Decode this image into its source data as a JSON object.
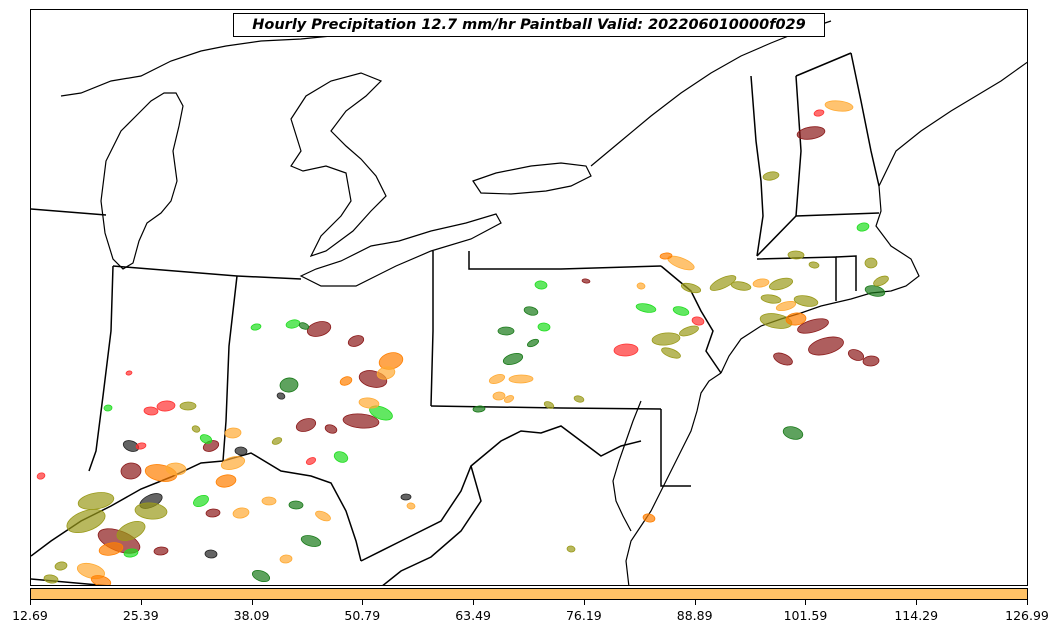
{
  "title": "Hourly Precipitation 12.7 mm/hr Paintball Valid: 202206010000f029",
  "colorbar": {
    "color": "#ffc266",
    "tick_labels": [
      "12.69",
      "25.39",
      "38.09",
      "50.79",
      "63.49",
      "76.19",
      "88.89",
      "101.59",
      "114.29",
      "126.99"
    ]
  },
  "member_colors": [
    "#8b1a1a",
    "#ff3030",
    "#ff7f00",
    "#ffaa33",
    "#9a9a1a",
    "#20dd20",
    "#1a7a1a",
    "#222222"
  ],
  "map": {
    "region": "Northeastern United States",
    "line_color": "#000000"
  }
}
